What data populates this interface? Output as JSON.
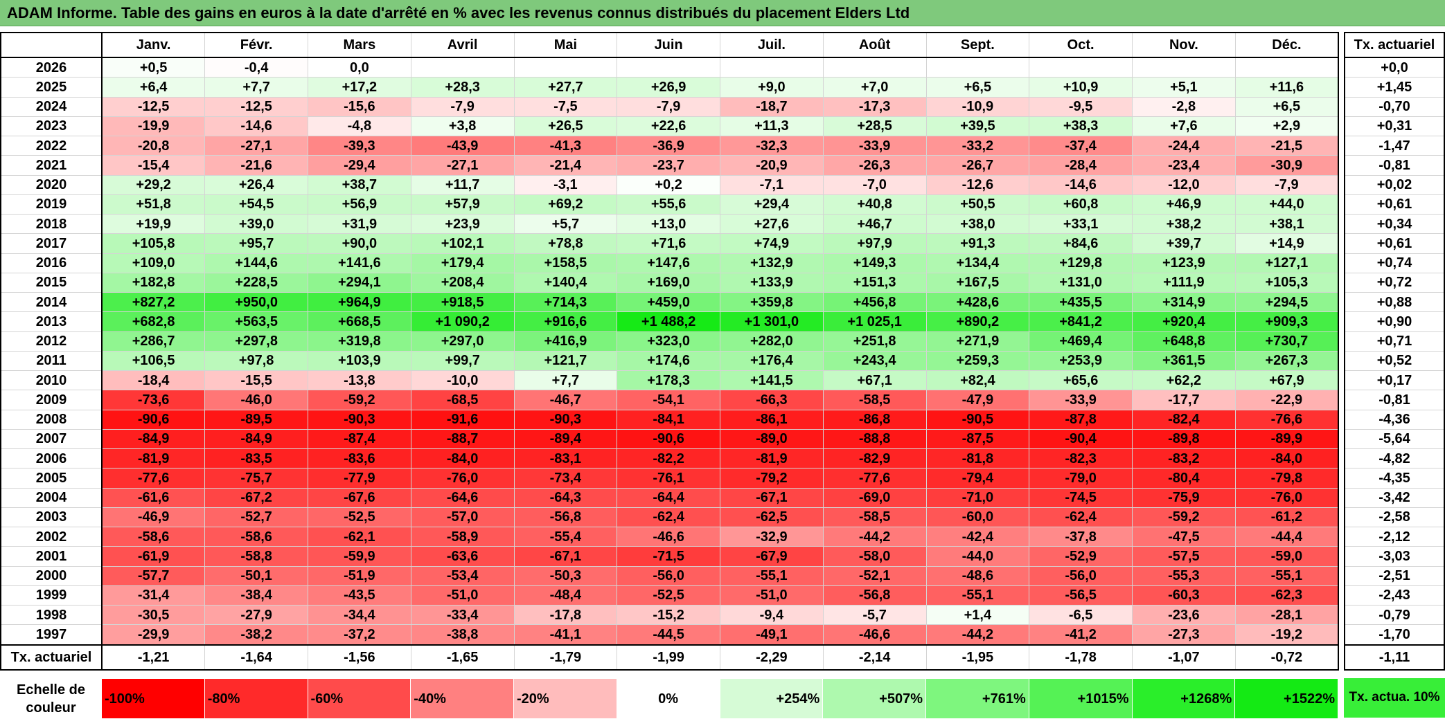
{
  "title": "ADAM Informe. Table des gains en euros à la date d'arrêté en % avec les revenus connus distribués du placement Elders Ltd",
  "months": [
    "Janv.",
    "Févr.",
    "Mars",
    "Avril",
    "Mai",
    "Juin",
    "Juil.",
    "Août",
    "Sept.",
    "Oct.",
    "Nov.",
    "Déc."
  ],
  "rate_header": "Tx. actuariel",
  "chart_data": {
    "type": "heatmap",
    "columns": [
      "Janv.",
      "Févr.",
      "Mars",
      "Avril",
      "Mai",
      "Juin",
      "Juil.",
      "Août",
      "Sept.",
      "Oct.",
      "Nov.",
      "Déc."
    ],
    "rows": [
      {
        "year": "2026",
        "values": [
          "+0,5",
          "-0,4",
          "0,0",
          "",
          "",
          "",
          "",
          "",
          "",
          "",
          "",
          ""
        ],
        "rate": "+0,0"
      },
      {
        "year": "2025",
        "values": [
          "+6,4",
          "+7,7",
          "+17,2",
          "+28,3",
          "+27,7",
          "+26,9",
          "+9,0",
          "+7,0",
          "+6,5",
          "+10,9",
          "+5,1",
          "+11,6"
        ],
        "rate": "+1,45"
      },
      {
        "year": "2024",
        "values": [
          "-12,5",
          "-12,5",
          "-15,6",
          "-7,9",
          "-7,5",
          "-7,9",
          "-18,7",
          "-17,3",
          "-10,9",
          "-9,5",
          "-2,8",
          "+6,5"
        ],
        "rate": "-0,70"
      },
      {
        "year": "2023",
        "values": [
          "-19,9",
          "-14,6",
          "-4,8",
          "+3,8",
          "+26,5",
          "+22,6",
          "+11,3",
          "+28,5",
          "+39,5",
          "+38,3",
          "+7,6",
          "+2,9"
        ],
        "rate": "+0,31"
      },
      {
        "year": "2022",
        "values": [
          "-20,8",
          "-27,1",
          "-39,3",
          "-43,9",
          "-41,3",
          "-36,9",
          "-32,3",
          "-33,9",
          "-33,2",
          "-37,4",
          "-24,4",
          "-21,5"
        ],
        "rate": "-1,47"
      },
      {
        "year": "2021",
        "values": [
          "-15,4",
          "-21,6",
          "-29,4",
          "-27,1",
          "-21,4",
          "-23,7",
          "-20,9",
          "-26,3",
          "-26,7",
          "-28,4",
          "-23,4",
          "-30,9"
        ],
        "rate": "-0,81"
      },
      {
        "year": "2020",
        "values": [
          "+29,2",
          "+26,4",
          "+38,7",
          "+11,7",
          "-3,1",
          "+0,2",
          "-7,1",
          "-7,0",
          "-12,6",
          "-14,6",
          "-12,0",
          "-7,9"
        ],
        "rate": "+0,02"
      },
      {
        "year": "2019",
        "values": [
          "+51,8",
          "+54,5",
          "+56,9",
          "+57,9",
          "+69,2",
          "+55,6",
          "+29,4",
          "+40,8",
          "+50,5",
          "+60,8",
          "+46,9",
          "+44,0"
        ],
        "rate": "+0,61"
      },
      {
        "year": "2018",
        "values": [
          "+19,9",
          "+39,0",
          "+31,9",
          "+23,9",
          "+5,7",
          "+13,0",
          "+27,6",
          "+46,7",
          "+38,0",
          "+33,1",
          "+38,2",
          "+38,1"
        ],
        "rate": "+0,34"
      },
      {
        "year": "2017",
        "values": [
          "+105,8",
          "+95,7",
          "+90,0",
          "+102,1",
          "+78,8",
          "+71,6",
          "+74,9",
          "+97,9",
          "+91,3",
          "+84,6",
          "+39,7",
          "+14,9"
        ],
        "rate": "+0,61"
      },
      {
        "year": "2016",
        "values": [
          "+109,0",
          "+144,6",
          "+141,6",
          "+179,4",
          "+158,5",
          "+147,6",
          "+132,9",
          "+149,3",
          "+134,4",
          "+129,8",
          "+123,9",
          "+127,1"
        ],
        "rate": "+0,74"
      },
      {
        "year": "2015",
        "values": [
          "+182,8",
          "+228,5",
          "+294,1",
          "+208,4",
          "+140,4",
          "+169,0",
          "+133,9",
          "+151,3",
          "+167,5",
          "+131,0",
          "+111,9",
          "+105,3"
        ],
        "rate": "+0,72"
      },
      {
        "year": "2014",
        "values": [
          "+827,2",
          "+950,0",
          "+964,9",
          "+918,5",
          "+714,3",
          "+459,0",
          "+359,8",
          "+456,8",
          "+428,6",
          "+435,5",
          "+314,9",
          "+294,5"
        ],
        "rate": "+0,88"
      },
      {
        "year": "2013",
        "values": [
          "+682,8",
          "+563,5",
          "+668,5",
          "+1 090,2",
          "+916,6",
          "+1 488,2",
          "+1 301,0",
          "+1 025,1",
          "+890,2",
          "+841,2",
          "+920,4",
          "+909,3"
        ],
        "rate": "+0,90"
      },
      {
        "year": "2012",
        "values": [
          "+286,7",
          "+297,8",
          "+319,8",
          "+297,0",
          "+416,9",
          "+323,0",
          "+282,0",
          "+251,8",
          "+271,9",
          "+469,4",
          "+648,8",
          "+730,7"
        ],
        "rate": "+0,71"
      },
      {
        "year": "2011",
        "values": [
          "+106,5",
          "+97,8",
          "+103,9",
          "+99,7",
          "+121,7",
          "+174,6",
          "+176,4",
          "+243,4",
          "+259,3",
          "+253,9",
          "+361,5",
          "+267,3"
        ],
        "rate": "+0,52"
      },
      {
        "year": "2010",
        "values": [
          "-18,4",
          "-15,5",
          "-13,8",
          "-10,0",
          "+7,7",
          "+178,3",
          "+141,5",
          "+67,1",
          "+82,4",
          "+65,6",
          "+62,2",
          "+67,9"
        ],
        "rate": "+0,17"
      },
      {
        "year": "2009",
        "values": [
          "-73,6",
          "-46,0",
          "-59,2",
          "-68,5",
          "-46,7",
          "-54,1",
          "-66,3",
          "-58,5",
          "-47,9",
          "-33,9",
          "-17,7",
          "-22,9"
        ],
        "rate": "-0,81"
      },
      {
        "year": "2008",
        "values": [
          "-90,6",
          "-89,5",
          "-90,3",
          "-91,6",
          "-90,3",
          "-84,1",
          "-86,1",
          "-86,8",
          "-90,5",
          "-87,8",
          "-82,4",
          "-76,6"
        ],
        "rate": "-4,36"
      },
      {
        "year": "2007",
        "values": [
          "-84,9",
          "-84,9",
          "-87,4",
          "-88,7",
          "-89,4",
          "-90,6",
          "-89,0",
          "-88,8",
          "-87,5",
          "-90,4",
          "-89,8",
          "-89,9"
        ],
        "rate": "-5,64"
      },
      {
        "year": "2006",
        "values": [
          "-81,9",
          "-83,5",
          "-83,6",
          "-84,0",
          "-83,1",
          "-82,2",
          "-81,9",
          "-82,9",
          "-81,8",
          "-82,3",
          "-83,2",
          "-84,0"
        ],
        "rate": "-4,82"
      },
      {
        "year": "2005",
        "values": [
          "-77,6",
          "-75,7",
          "-77,9",
          "-76,0",
          "-73,4",
          "-76,1",
          "-79,2",
          "-77,6",
          "-79,4",
          "-79,0",
          "-80,4",
          "-79,8"
        ],
        "rate": "-4,35"
      },
      {
        "year": "2004",
        "values": [
          "-61,6",
          "-67,2",
          "-67,6",
          "-64,6",
          "-64,3",
          "-64,4",
          "-67,1",
          "-69,0",
          "-71,0",
          "-74,5",
          "-75,9",
          "-76,0"
        ],
        "rate": "-3,42"
      },
      {
        "year": "2003",
        "values": [
          "-46,9",
          "-52,7",
          "-52,5",
          "-57,0",
          "-56,8",
          "-62,4",
          "-62,5",
          "-58,5",
          "-60,0",
          "-62,4",
          "-59,2",
          "-61,2"
        ],
        "rate": "-2,58"
      },
      {
        "year": "2002",
        "values": [
          "-58,6",
          "-58,6",
          "-62,1",
          "-58,9",
          "-55,4",
          "-46,6",
          "-32,9",
          "-44,2",
          "-42,4",
          "-37,8",
          "-47,5",
          "-44,4"
        ],
        "rate": "-2,12"
      },
      {
        "year": "2001",
        "values": [
          "-61,9",
          "-58,8",
          "-59,9",
          "-63,6",
          "-67,1",
          "-71,5",
          "-67,9",
          "-58,0",
          "-44,0",
          "-52,9",
          "-57,5",
          "-59,0"
        ],
        "rate": "-3,03"
      },
      {
        "year": "2000",
        "values": [
          "-57,7",
          "-50,1",
          "-51,9",
          "-53,4",
          "-50,3",
          "-56,0",
          "-55,1",
          "-52,1",
          "-48,6",
          "-56,0",
          "-55,3",
          "-55,1"
        ],
        "rate": "-2,51"
      },
      {
        "year": "1999",
        "values": [
          "-31,4",
          "-38,4",
          "-43,5",
          "-51,0",
          "-48,4",
          "-52,5",
          "-51,0",
          "-56,8",
          "-55,1",
          "-56,5",
          "-60,3",
          "-62,3"
        ],
        "rate": "-2,43"
      },
      {
        "year": "1998",
        "values": [
          "-30,5",
          "-27,9",
          "-34,4",
          "-33,4",
          "-17,8",
          "-15,2",
          "-9,4",
          "-5,7",
          "+1,4",
          "-6,5",
          "-23,6",
          "-28,1"
        ],
        "rate": "-0,79"
      },
      {
        "year": "1997",
        "values": [
          "-29,9",
          "-38,2",
          "-37,2",
          "-38,8",
          "-41,1",
          "-44,5",
          "-49,1",
          "-46,6",
          "-44,2",
          "-41,2",
          "-27,3",
          "-19,2"
        ],
        "rate": "-1,70"
      }
    ],
    "summary_label": "Tx. actuariel",
    "summary_values": [
      "-1,21",
      "-1,64",
      "-1,56",
      "-1,65",
      "-1,79",
      "-1,99",
      "-2,29",
      "-2,14",
      "-1,95",
      "-1,78",
      "-1,07",
      "-0,72"
    ],
    "summary_rate": "-1,11",
    "scale_label": "Echelle de couleur",
    "scale": [
      {
        "label": "-100%",
        "color": "#ff0000"
      },
      {
        "label": "-80%",
        "color": "#ff2a2a"
      },
      {
        "label": "-60%",
        "color": "#ff4b4b"
      },
      {
        "label": "-40%",
        "color": "#ff8080"
      },
      {
        "label": "-20%",
        "color": "#ffbcbc"
      },
      {
        "label": "0%",
        "color": "#ffffff"
      },
      {
        "label": "+254%",
        "color": "#d6fbd6"
      },
      {
        "label": "+507%",
        "color": "#aef9ae"
      },
      {
        "label": "+761%",
        "color": "#7ef67e"
      },
      {
        "label": "+1015%",
        "color": "#55f255"
      },
      {
        "label": "+1268%",
        "color": "#2aee2a"
      },
      {
        "label": "+1522%",
        "color": "#14ea14"
      }
    ],
    "scale_rate_label": "Tx. actua. 10%",
    "scale_rate_color": "#38ee38"
  }
}
